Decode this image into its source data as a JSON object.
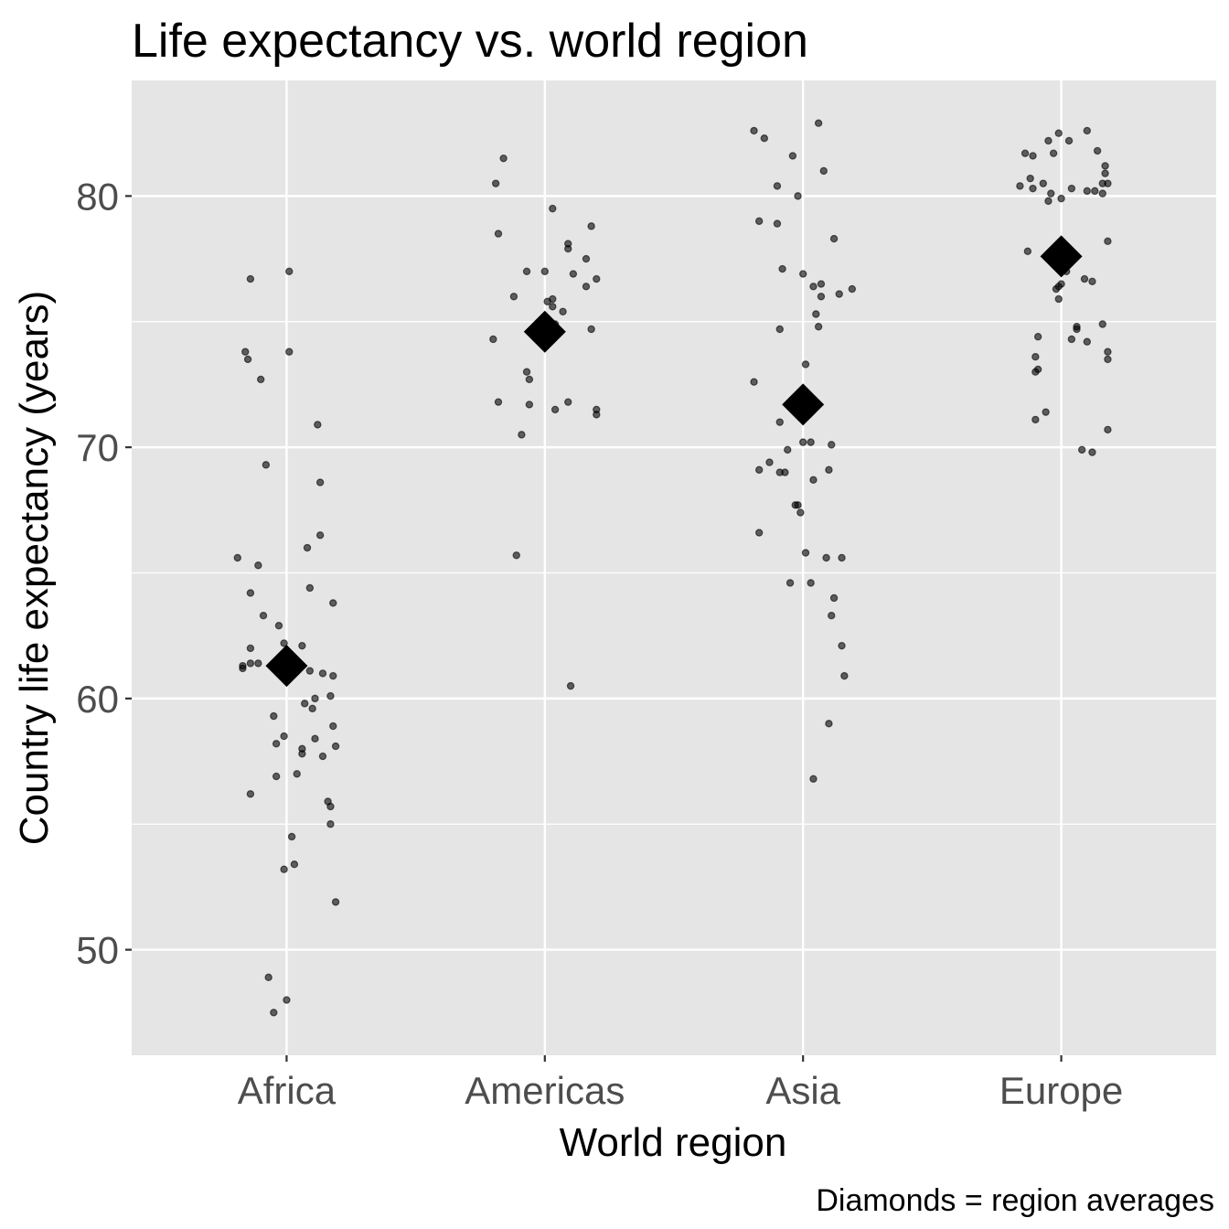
{
  "chart_data": {
    "type": "scatter",
    "title": "Life expectancy vs. world region",
    "xlabel": "World region",
    "ylabel": "Country life expectancy (years)",
    "caption": "Diamonds = region averages",
    "categories": [
      "Africa",
      "Americas",
      "Asia",
      "Europe"
    ],
    "ylim": [
      45.8,
      84.6
    ],
    "yticks": [
      50,
      60,
      70,
      80
    ],
    "ytick_labels": [
      "50",
      "60",
      "70",
      "80"
    ],
    "grid": true,
    "colors": {
      "panel": "#e5e5e5",
      "grid": "#ffffff",
      "point": "#000000",
      "point_alpha": 0.6,
      "mean": "#000000"
    },
    "means": [
      61.3,
      74.6,
      71.7,
      77.6
    ],
    "series": [
      {
        "name": "Africa",
        "points": [
          [
            -0.14,
            76.7
          ],
          [
            0.01,
            77.0
          ],
          [
            -0.16,
            73.8
          ],
          [
            -0.15,
            73.5
          ],
          [
            0.01,
            73.8
          ],
          [
            -0.1,
            72.7
          ],
          [
            0.12,
            70.9
          ],
          [
            -0.08,
            69.3
          ],
          [
            0.13,
            68.6
          ],
          [
            0.13,
            66.5
          ],
          [
            -0.19,
            65.6
          ],
          [
            -0.11,
            65.3
          ],
          [
            0.08,
            66.0
          ],
          [
            0.09,
            64.4
          ],
          [
            -0.14,
            64.2
          ],
          [
            -0.09,
            63.3
          ],
          [
            0.18,
            63.8
          ],
          [
            -0.03,
            62.9
          ],
          [
            -0.01,
            62.2
          ],
          [
            0.06,
            62.1
          ],
          [
            -0.14,
            62.0
          ],
          [
            -0.17,
            61.2
          ],
          [
            -0.17,
            61.3
          ],
          [
            -0.14,
            61.4
          ],
          [
            -0.11,
            61.4
          ],
          [
            0.09,
            61.1
          ],
          [
            0.14,
            61.0
          ],
          [
            0.18,
            60.9
          ],
          [
            0.07,
            59.8
          ],
          [
            0.11,
            60.0
          ],
          [
            0.1,
            59.6
          ],
          [
            0.17,
            60.1
          ],
          [
            -0.05,
            59.3
          ],
          [
            -0.01,
            58.5
          ],
          [
            0.18,
            58.9
          ],
          [
            -0.04,
            58.2
          ],
          [
            0.11,
            58.4
          ],
          [
            0.06,
            58.0
          ],
          [
            0.14,
            57.7
          ],
          [
            0.19,
            58.1
          ],
          [
            0.06,
            57.8
          ],
          [
            0.04,
            57.0
          ],
          [
            -0.04,
            56.9
          ],
          [
            -0.14,
            56.2
          ],
          [
            0.16,
            55.9
          ],
          [
            0.17,
            55.7
          ],
          [
            0.02,
            54.5
          ],
          [
            0.17,
            55.0
          ],
          [
            0.03,
            53.4
          ],
          [
            -0.01,
            53.2
          ],
          [
            0.19,
            51.9
          ],
          [
            -0.07,
            48.9
          ],
          [
            0.0,
            48.0
          ],
          [
            -0.05,
            47.5
          ]
        ]
      },
      {
        "name": "Americas",
        "points": [
          [
            -0.19,
            80.5
          ],
          [
            -0.16,
            81.5
          ],
          [
            -0.18,
            78.5
          ],
          [
            0.03,
            79.5
          ],
          [
            0.18,
            78.8
          ],
          [
            -0.07,
            77.0
          ],
          [
            0.0,
            77.0
          ],
          [
            0.09,
            77.9
          ],
          [
            0.16,
            77.5
          ],
          [
            0.09,
            78.1
          ],
          [
            0.11,
            76.9
          ],
          [
            0.2,
            76.7
          ],
          [
            -0.12,
            76.0
          ],
          [
            0.03,
            75.9
          ],
          [
            0.03,
            75.6
          ],
          [
            0.01,
            75.8
          ],
          [
            0.16,
            76.4
          ],
          [
            -0.02,
            74.7
          ],
          [
            0.07,
            75.4
          ],
          [
            0.04,
            74.9
          ],
          [
            -0.2,
            74.3
          ],
          [
            0.18,
            74.7
          ],
          [
            -0.07,
            73.0
          ],
          [
            -0.06,
            72.7
          ],
          [
            -0.18,
            71.8
          ],
          [
            -0.06,
            71.7
          ],
          [
            0.04,
            71.5
          ],
          [
            0.09,
            71.8
          ],
          [
            0.2,
            71.5
          ],
          [
            0.2,
            71.3
          ],
          [
            -0.09,
            70.5
          ],
          [
            -0.11,
            65.7
          ],
          [
            0.1,
            60.5
          ]
        ]
      },
      {
        "name": "Asia",
        "points": [
          [
            -0.19,
            82.6
          ],
          [
            -0.15,
            82.3
          ],
          [
            0.06,
            82.9
          ],
          [
            -0.04,
            81.6
          ],
          [
            0.08,
            81.0
          ],
          [
            -0.1,
            80.4
          ],
          [
            -0.02,
            80.0
          ],
          [
            -0.17,
            79.0
          ],
          [
            -0.1,
            78.9
          ],
          [
            0.12,
            78.3
          ],
          [
            -0.08,
            77.1
          ],
          [
            0.0,
            76.9
          ],
          [
            0.04,
            76.4
          ],
          [
            0.07,
            76.5
          ],
          [
            0.07,
            76.0
          ],
          [
            0.14,
            76.1
          ],
          [
            0.19,
            76.3
          ],
          [
            -0.09,
            74.7
          ],
          [
            0.05,
            75.3
          ],
          [
            0.06,
            74.8
          ],
          [
            -0.19,
            72.6
          ],
          [
            0.01,
            73.3
          ],
          [
            -0.09,
            71.0
          ],
          [
            -0.06,
            69.9
          ],
          [
            0.0,
            70.2
          ],
          [
            0.03,
            70.2
          ],
          [
            0.11,
            70.1
          ],
          [
            -0.13,
            69.4
          ],
          [
            -0.09,
            69.0
          ],
          [
            -0.07,
            69.0
          ],
          [
            0.04,
            68.7
          ],
          [
            0.1,
            69.1
          ],
          [
            -0.17,
            69.1
          ],
          [
            -0.03,
            67.7
          ],
          [
            -0.02,
            67.7
          ],
          [
            -0.01,
            67.4
          ],
          [
            -0.17,
            66.6
          ],
          [
            0.01,
            65.8
          ],
          [
            0.09,
            65.6
          ],
          [
            0.15,
            65.6
          ],
          [
            0.03,
            64.6
          ],
          [
            0.12,
            64.0
          ],
          [
            -0.05,
            64.6
          ],
          [
            0.11,
            63.3
          ],
          [
            0.15,
            62.1
          ],
          [
            0.16,
            60.9
          ],
          [
            0.1,
            59.0
          ],
          [
            0.04,
            56.8
          ]
        ]
      },
      {
        "name": "Europe",
        "points": [
          [
            0.1,
            82.6
          ],
          [
            -0.01,
            82.5
          ],
          [
            -0.05,
            82.2
          ],
          [
            0.03,
            82.2
          ],
          [
            -0.14,
            81.7
          ],
          [
            -0.11,
            81.6
          ],
          [
            -0.03,
            81.7
          ],
          [
            0.14,
            81.8
          ],
          [
            0.17,
            81.2
          ],
          [
            0.17,
            80.9
          ],
          [
            -0.16,
            80.4
          ],
          [
            -0.12,
            80.7
          ],
          [
            -0.07,
            80.5
          ],
          [
            -0.11,
            80.3
          ],
          [
            -0.04,
            80.1
          ],
          [
            0.04,
            80.3
          ],
          [
            0.1,
            80.2
          ],
          [
            0.13,
            80.2
          ],
          [
            0.16,
            80.5
          ],
          [
            0.18,
            80.5
          ],
          [
            0.16,
            80.1
          ],
          [
            -0.05,
            79.8
          ],
          [
            0.0,
            79.9
          ],
          [
            0.18,
            78.2
          ],
          [
            -0.13,
            77.8
          ],
          [
            -0.01,
            76.4
          ],
          [
            0.02,
            77.0
          ],
          [
            0.09,
            76.7
          ],
          [
            0.12,
            76.6
          ],
          [
            -0.02,
            76.3
          ],
          [
            -0.01,
            75.9
          ],
          [
            0.0,
            76.5
          ],
          [
            0.06,
            74.8
          ],
          [
            -0.09,
            74.4
          ],
          [
            0.06,
            74.7
          ],
          [
            0.16,
            74.9
          ],
          [
            0.1,
            74.2
          ],
          [
            0.04,
            74.3
          ],
          [
            0.18,
            73.8
          ],
          [
            0.18,
            73.5
          ],
          [
            -0.1,
            73.6
          ],
          [
            -0.1,
            73.0
          ],
          [
            -0.09,
            73.1
          ],
          [
            -0.06,
            71.4
          ],
          [
            -0.1,
            71.1
          ],
          [
            0.18,
            70.7
          ],
          [
            0.08,
            69.9
          ],
          [
            0.12,
            69.8
          ]
        ]
      }
    ]
  }
}
